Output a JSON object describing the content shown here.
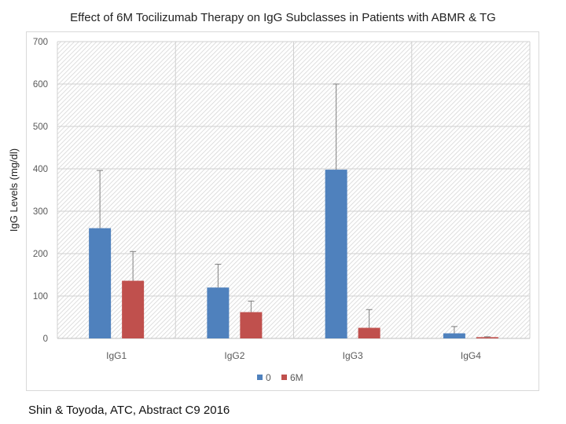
{
  "footer": "Shin & Toyoda, ATC, Abstract C9 2016",
  "chart_data": {
    "type": "bar",
    "title": "Effect of 6M Tocilizumab Therapy on IgG Subclasses in Patients with ABMR & TG",
    "xlabel": "",
    "ylabel": "IgG Levels (mg/dl)",
    "ylim": [
      0,
      700
    ],
    "yticks": [
      0,
      100,
      200,
      300,
      400,
      500,
      600,
      700
    ],
    "categories": [
      "IgG1",
      "IgG2",
      "IgG3",
      "IgG4"
    ],
    "series": [
      {
        "name": "0",
        "color": "#4F81BD",
        "values": [
          260,
          120,
          398,
          12
        ],
        "error_upper": [
          396,
          175,
          600,
          28
        ]
      },
      {
        "name": "6M",
        "color": "#C0504D",
        "values": [
          136,
          62,
          25,
          3
        ],
        "error_upper": [
          205,
          88,
          68,
          4
        ]
      }
    ],
    "grid": true,
    "legend": "bottom"
  }
}
